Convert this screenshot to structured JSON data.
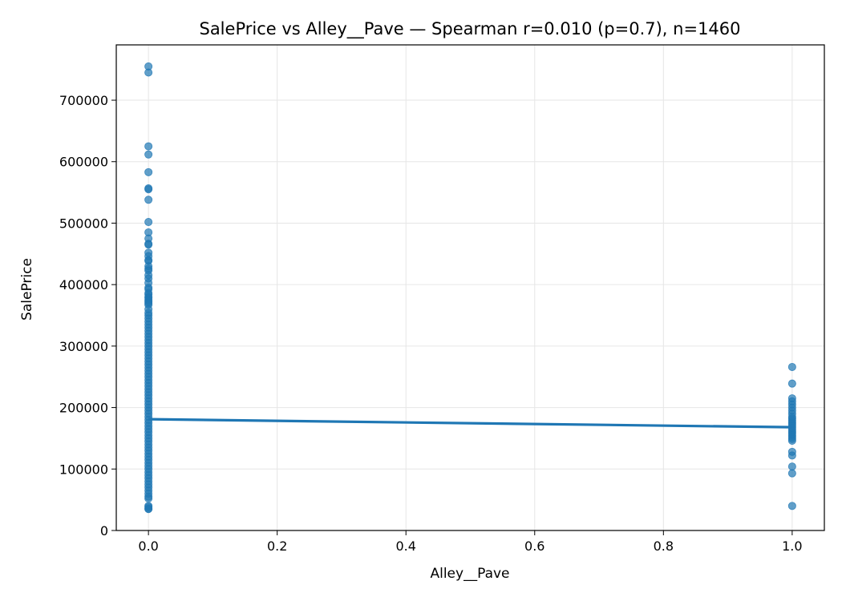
{
  "chart_data": {
    "type": "scatter",
    "title": "SalePrice vs Alley__Pave — Spearman r=0.010 (p=0.7), n=1460",
    "xlabel": "Alley__Pave",
    "ylabel": "SalePrice",
    "xlim": [
      -0.05,
      1.05
    ],
    "ylim": [
      0,
      790000
    ],
    "xticks": [
      0.0,
      0.2,
      0.4,
      0.6,
      0.8,
      1.0
    ],
    "xtick_labels": [
      "0.0",
      "0.2",
      "0.4",
      "0.6",
      "0.8",
      "1.0"
    ],
    "yticks": [
      0,
      100000,
      200000,
      300000,
      400000,
      500000,
      600000,
      700000
    ],
    "ytick_labels": [
      "0",
      "100000",
      "200000",
      "300000",
      "400000",
      "500000",
      "600000",
      "700000"
    ],
    "grid": true,
    "colors": {
      "points": "#1f77b4",
      "fit_line": "#1f77b4",
      "grid": "#e6e6e6"
    },
    "points": {
      "x0": [
        755000,
        745000,
        625000,
        611657,
        582933,
        556581,
        555000,
        538000,
        501837,
        485000,
        475000,
        466500,
        465000,
        451950,
        446261,
        440000,
        438780,
        430000,
        426000,
        423000,
        415298,
        410000,
        402861,
        395192,
        392500,
        386250,
        383970,
        380000,
        378500,
        375000,
        372402,
        369900,
        367294,
        360000,
        354000,
        350000,
        345000,
        340000,
        335000,
        330000,
        325000,
        320000,
        315000,
        310000,
        305000,
        300000,
        295000,
        290000,
        285000,
        280000,
        275000,
        270000,
        265000,
        260000,
        255000,
        250000,
        245000,
        240000,
        235000,
        230000,
        225000,
        220000,
        215000,
        210000,
        205000,
        200000,
        195000,
        190000,
        185000,
        180000,
        175000,
        170000,
        165000,
        160000,
        155000,
        150000,
        145000,
        140000,
        135000,
        130000,
        125000,
        120000,
        115000,
        110000,
        105000,
        100000,
        95000,
        90000,
        85000,
        80000,
        75000,
        70000,
        65000,
        60000,
        55000,
        52000,
        40000,
        37900,
        35311,
        34900
      ],
      "x1": [
        265979,
        239000,
        215000,
        210000,
        205000,
        200000,
        195000,
        190000,
        185000,
        182000,
        179000,
        176000,
        173000,
        170000,
        167000,
        164000,
        161000,
        158000,
        155000,
        152000,
        149000,
        146000,
        128000,
        122000,
        104000,
        93000,
        40000
      ]
    },
    "fit_line": {
      "x": [
        0,
        1
      ],
      "y": [
        181000,
        168000
      ]
    }
  }
}
